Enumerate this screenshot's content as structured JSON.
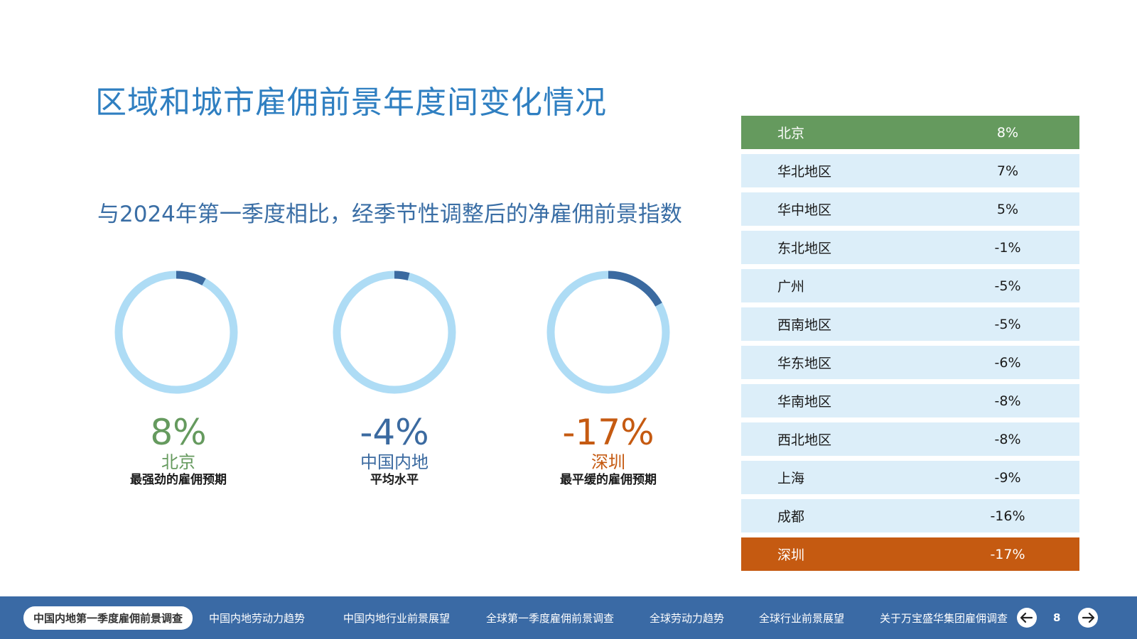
{
  "title": "区域和城市雇佣前景年度间变化情况",
  "subtitle": "与2024年第一季度相比，经季节性调整后的净雇佣前景指数",
  "stats": [
    {
      "value": "8%",
      "city": "北京",
      "desc": "最强劲的雇佣预期",
      "fraction": 0.08,
      "color": "#659a5e",
      "arc_color": "#3b6aa0"
    },
    {
      "value": "-4%",
      "city": "中国内地",
      "desc": "平均水平",
      "fraction": 0.04,
      "color": "#3b6aa0",
      "arc_color": "#3b6aa0"
    },
    {
      "value": "-17%",
      "city": "深圳",
      "desc": "最平缓的雇佣预期",
      "fraction": 0.17,
      "color": "#c55a11",
      "arc_color": "#3b6aa0"
    }
  ],
  "ring_color": "#aedcf5",
  "table": [
    {
      "name": "北京",
      "pct": "8%",
      "highlight": "green"
    },
    {
      "name": "华北地区",
      "pct": "7%",
      "highlight": ""
    },
    {
      "name": "华中地区",
      "pct": "5%",
      "highlight": ""
    },
    {
      "name": "东北地区",
      "pct": "-1%",
      "highlight": ""
    },
    {
      "name": "广州",
      "pct": "-5%",
      "highlight": ""
    },
    {
      "name": "西南地区",
      "pct": "-5%",
      "highlight": ""
    },
    {
      "name": "华东地区",
      "pct": "-6%",
      "highlight": ""
    },
    {
      "name": "华南地区",
      "pct": "-8%",
      "highlight": ""
    },
    {
      "name": "西北地区",
      "pct": "-8%",
      "highlight": ""
    },
    {
      "name": "上海",
      "pct": "-9%",
      "highlight": ""
    },
    {
      "name": "成都",
      "pct": "-16%",
      "highlight": ""
    },
    {
      "name": "深圳",
      "pct": "-17%",
      "highlight": "orange"
    }
  ],
  "nav": {
    "items": [
      "中国内地第一季度雇佣前景调查",
      "中国内地劳动力趋势",
      "中国内地行业前景展望",
      "全球第一季度雇佣前景调查",
      "全球劳动力趋势",
      "全球行业前景展望",
      "关于万宝盛华集团雇佣调查"
    ],
    "active_index": 0,
    "page": "8",
    "prev_icon": "arrow-left-icon",
    "next_icon": "arrow-right-icon"
  }
}
